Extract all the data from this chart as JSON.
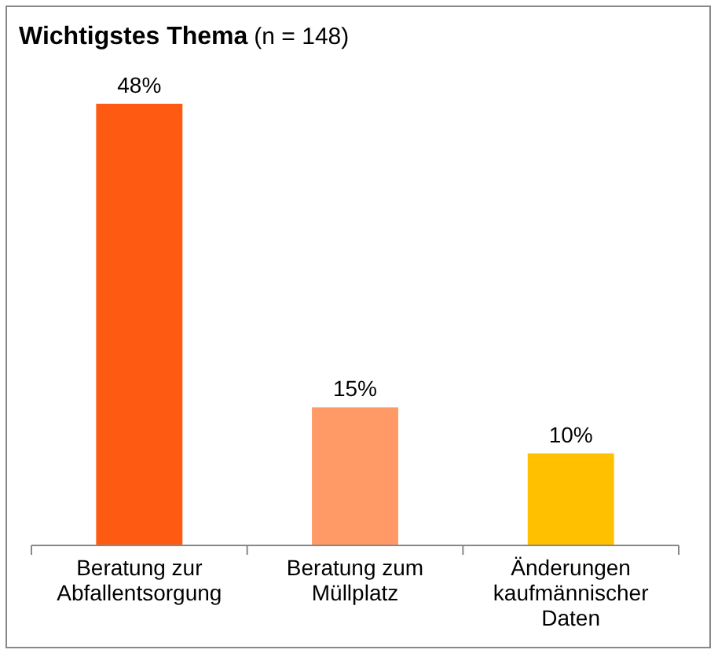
{
  "chart_data": {
    "type": "bar",
    "title": "Wichtigstes Thema",
    "subtitle": "(n = 148)",
    "categories": [
      "Beratung zur Abfallentsorgung",
      "Beratung zum Müllplatz",
      "Änderungen kaufmännischer Daten"
    ],
    "values": [
      48,
      15,
      10
    ],
    "colors": [
      "#ff5a12",
      "#ff9966",
      "#ffc000"
    ],
    "value_labels": [
      "48%",
      "15%",
      "10%"
    ]
  }
}
